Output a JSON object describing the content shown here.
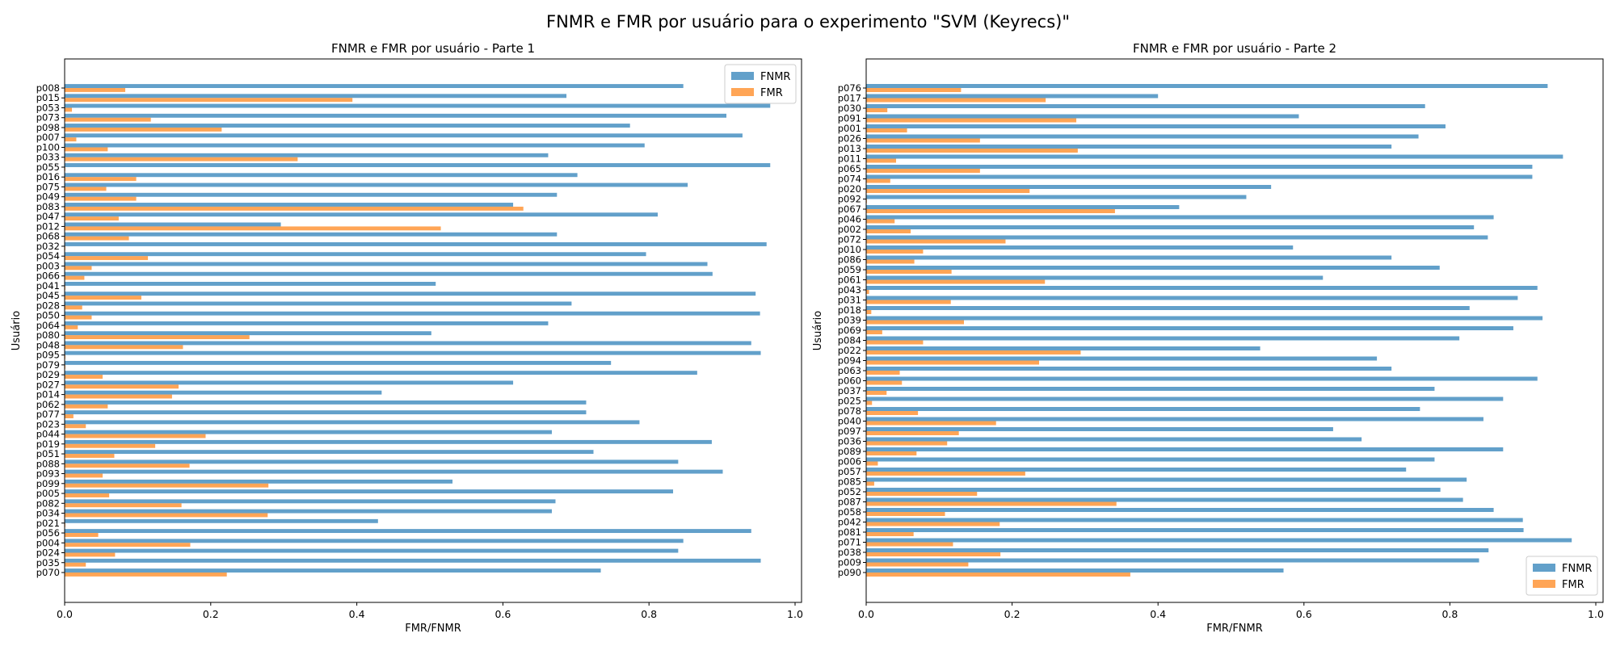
{
  "figure": {
    "suptitle": "FNMR e FMR por usuário para o experimento \"SVM (Keyrecs)\""
  },
  "colors": {
    "fnmr": "#1f77b4",
    "fmr": "#ff7f0e",
    "bar_opacity": 0.7
  },
  "chart_data": [
    {
      "type": "bar",
      "orientation": "horizontal",
      "title": "FNMR e FMR por usuário - Parte 1",
      "xlabel": "FMR/FNMR",
      "ylabel": "Usuário",
      "xlim": [
        0,
        1.0
      ],
      "xticks": [
        "0.0",
        "0.2",
        "0.4",
        "0.6",
        "0.8",
        "1.0"
      ],
      "legend": {
        "position": "top-right"
      },
      "categories": [
        "p008",
        "p015",
        "p053",
        "p073",
        "p098",
        "p007",
        "p100",
        "p033",
        "p055",
        "p016",
        "p075",
        "p049",
        "p083",
        "p047",
        "p012",
        "p068",
        "p032",
        "p054",
        "p003",
        "p066",
        "p041",
        "p045",
        "p028",
        "p050",
        "p064",
        "p080",
        "p048",
        "p095",
        "p079",
        "p029",
        "p027",
        "p014",
        "p062",
        "p077",
        "p023",
        "p044",
        "p019",
        "p051",
        "p088",
        "p093",
        "p099",
        "p005",
        "p082",
        "p034",
        "p021",
        "p056",
        "p004",
        "p024",
        "p035",
        "p070"
      ],
      "series": [
        {
          "name": "FNMR",
          "values": [
            0.847,
            0.687,
            0.966,
            0.906,
            0.774,
            0.928,
            0.794,
            0.662,
            0.966,
            0.702,
            0.853,
            0.674,
            0.614,
            0.812,
            0.296,
            0.674,
            0.961,
            0.796,
            0.88,
            0.887,
            0.508,
            0.946,
            0.694,
            0.952,
            0.662,
            0.502,
            0.94,
            0.953,
            0.748,
            0.866,
            0.614,
            0.434,
            0.714,
            0.714,
            0.787,
            0.667,
            0.886,
            0.724,
            0.84,
            0.901,
            0.531,
            0.833,
            0.672,
            0.667,
            0.429,
            0.94,
            0.847,
            0.84,
            0.953,
            0.734
          ]
        },
        {
          "name": "FMR",
          "values": [
            0.083,
            0.394,
            0.01,
            0.118,
            0.215,
            0.016,
            0.059,
            0.319,
            0.001,
            0.098,
            0.057,
            0.098,
            0.628,
            0.074,
            0.515,
            0.088,
            0.001,
            0.114,
            0.037,
            0.027,
            0.001,
            0.105,
            0.024,
            0.037,
            0.018,
            0.253,
            0.162,
            0.001,
            0.001,
            0.052,
            0.156,
            0.147,
            0.059,
            0.012,
            0.029,
            0.193,
            0.124,
            0.068,
            0.171,
            0.052,
            0.279,
            0.061,
            0.16,
            0.278,
            0.001,
            0.046,
            0.172,
            0.069,
            0.029,
            0.222
          ]
        }
      ]
    },
    {
      "type": "bar",
      "orientation": "horizontal",
      "title": "FNMR e FMR por usuário - Parte 2",
      "xlabel": "FMR/FNMR",
      "ylabel": "Usuário",
      "xlim": [
        0,
        1.0
      ],
      "xticks": [
        "0.0",
        "0.2",
        "0.4",
        "0.6",
        "0.8",
        "1.0"
      ],
      "legend": {
        "position": "bottom-right"
      },
      "categories": [
        "p076",
        "p017",
        "p030",
        "p091",
        "p001",
        "p026",
        "p013",
        "p011",
        "p065",
        "p074",
        "p020",
        "p092",
        "p067",
        "p046",
        "p002",
        "p072",
        "p010",
        "p086",
        "p059",
        "p061",
        "p043",
        "p031",
        "p018",
        "p039",
        "p069",
        "p084",
        "p022",
        "p094",
        "p063",
        "p060",
        "p037",
        "p025",
        "p078",
        "p040",
        "p097",
        "p036",
        "p089",
        "p006",
        "p057",
        "p085",
        "p052",
        "p087",
        "p058",
        "p042",
        "p081",
        "p071",
        "p038",
        "p009",
        "p090"
      ],
      "series": [
        {
          "name": "FNMR",
          "values": [
            0.934,
            0.4,
            0.766,
            0.593,
            0.794,
            0.757,
            0.72,
            0.955,
            0.913,
            0.913,
            0.555,
            0.521,
            0.429,
            0.86,
            0.833,
            0.852,
            0.585,
            0.72,
            0.786,
            0.626,
            0.92,
            0.893,
            0.827,
            0.927,
            0.887,
            0.813,
            0.54,
            0.7,
            0.72,
            0.92,
            0.779,
            0.873,
            0.759,
            0.846,
            0.64,
            0.679,
            0.873,
            0.779,
            0.74,
            0.823,
            0.787,
            0.818,
            0.86,
            0.9,
            0.901,
            0.967,
            0.853,
            0.84,
            0.572
          ]
        },
        {
          "name": "FMR",
          "values": [
            0.13,
            0.246,
            0.029,
            0.288,
            0.056,
            0.156,
            0.29,
            0.041,
            0.156,
            0.033,
            0.224,
            0.001,
            0.341,
            0.039,
            0.061,
            0.191,
            0.078,
            0.066,
            0.117,
            0.245,
            0.004,
            0.116,
            0.007,
            0.134,
            0.022,
            0.078,
            0.294,
            0.237,
            0.046,
            0.049,
            0.028,
            0.008,
            0.071,
            0.178,
            0.127,
            0.111,
            0.069,
            0.016,
            0.218,
            0.011,
            0.152,
            0.343,
            0.108,
            0.183,
            0.065,
            0.119,
            0.184,
            0.14,
            0.362
          ]
        }
      ]
    }
  ]
}
